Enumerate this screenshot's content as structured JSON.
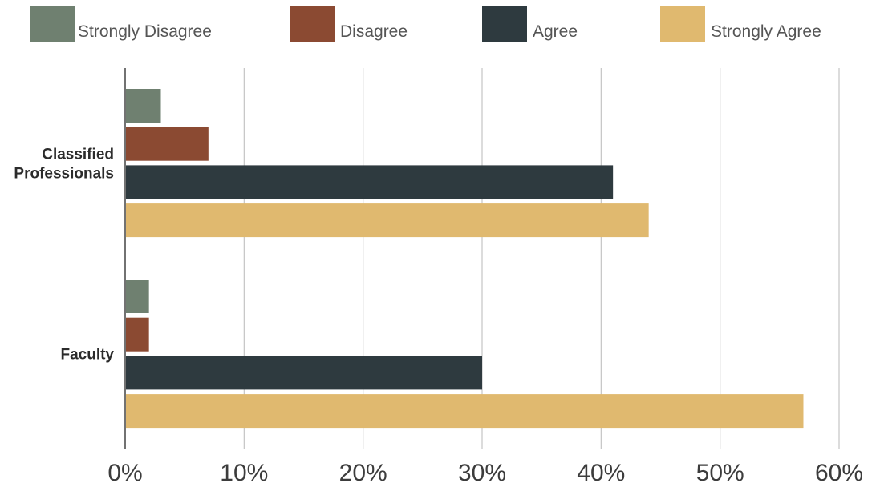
{
  "chart_data": {
    "type": "bar",
    "orientation": "horizontal",
    "title": "",
    "xlabel": "",
    "ylabel": "",
    "categories": [
      "Classified Professionals",
      "Faculty"
    ],
    "category_label_lines": [
      [
        "Classified",
        "Professionals"
      ],
      [
        "Faculty"
      ]
    ],
    "series": [
      {
        "name": "Strongly Disagree",
        "color": "#6f8070",
        "values": [
          3,
          2
        ]
      },
      {
        "name": "Disagree",
        "color": "#8b4a32",
        "values": [
          7,
          2
        ]
      },
      {
        "name": "Agree",
        "color": "#2e3a3f",
        "values": [
          41,
          30
        ]
      },
      {
        "name": "Strongly Agree",
        "color": "#e0b96f",
        "values": [
          44,
          57
        ]
      }
    ],
    "xlim": [
      0,
      60
    ],
    "x_ticks": [
      0,
      10,
      20,
      30,
      40,
      50,
      60
    ],
    "x_tick_labels": [
      "0%",
      "10%",
      "20%",
      "30%",
      "40%",
      "50%",
      "60%"
    ],
    "grid": true,
    "legend_position": "top"
  }
}
